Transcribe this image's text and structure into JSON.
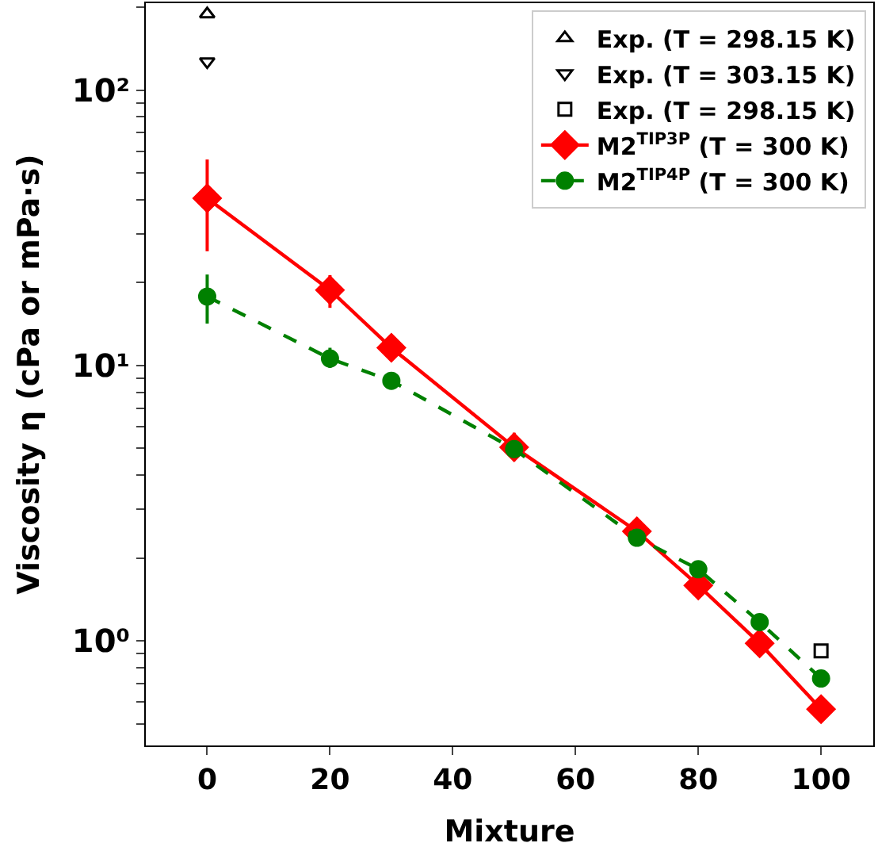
{
  "chart_data": {
    "type": "line",
    "xlabel": "Mixture",
    "ylabel": "Viscosity η (cPa or mPa·s)",
    "log": "y",
    "legend": "top right",
    "xlim": [
      -10,
      108.5
    ],
    "xticks": [
      0,
      20,
      40,
      60,
      80,
      100
    ],
    "ylim": [
      0.417,
      207
    ],
    "yticks": [
      {
        "value": 1,
        "label": "10⁰"
      },
      {
        "value": 10,
        "label": "10¹"
      },
      {
        "value": 100,
        "label": "10²"
      },
      {
        "value": 0.5,
        "label": null
      },
      {
        "value": 0.6,
        "label": null
      },
      {
        "value": 0.7,
        "label": null
      },
      {
        "value": 0.8,
        "label": null
      },
      {
        "value": 0.9,
        "label": null
      },
      {
        "value": 2,
        "label": null
      },
      {
        "value": 3,
        "label": null
      },
      {
        "value": 4,
        "label": null
      },
      {
        "value": 5,
        "label": null
      },
      {
        "value": 6,
        "label": null
      },
      {
        "value": 7,
        "label": null
      },
      {
        "value": 8,
        "label": null
      },
      {
        "value": 9,
        "label": null
      },
      {
        "value": 20,
        "label": null
      },
      {
        "value": 30,
        "label": null
      },
      {
        "value": 40,
        "label": null
      },
      {
        "value": 50,
        "label": null
      },
      {
        "value": 60,
        "label": null
      },
      {
        "value": 70,
        "label": null
      },
      {
        "value": 80,
        "label": null
      },
      {
        "value": 90,
        "label": null
      },
      {
        "value": 200,
        "label": null
      }
    ],
    "series": [
      {
        "name": "Exp. (T = 298.15 K)",
        "type": "scatter",
        "marker": "triangle",
        "color": "#000000",
        "x": [
          0
        ],
        "values": [
          189
        ]
      },
      {
        "name": "Exp. (T = 303.15 K)",
        "type": "scatter",
        "marker": "triangle-down",
        "color": "#000000",
        "x": [
          0
        ],
        "values": [
          127
        ]
      },
      {
        "name": "Exp. (T = 298.15 K)",
        "type": "scatter",
        "marker": "square",
        "color": "#000000",
        "x": [
          100
        ],
        "values": [
          0.92
        ]
      },
      {
        "name": "M2$^{TIP3P}$ (T = 300 K)",
        "marker": "diamond",
        "line_style": "solid",
        "color": "#ff0000",
        "x": [
          0,
          20,
          30,
          50,
          70,
          80,
          90,
          100
        ],
        "values": [
          40.5,
          18.8,
          11.6,
          5.05,
          2.5,
          1.59,
          0.98,
          0.565
        ],
        "errors": [
          [
            26,
            56
          ],
          [
            16.2,
            21.3
          ],
          [
            10.8,
            12.5
          ],
          [
            4.5,
            5.7
          ],
          [
            2.3,
            2.8
          ],
          [
            1.5,
            1.7
          ],
          null,
          null
        ]
      },
      {
        "name": "M2$^{TIP4P}$ (T = 300 K)",
        "marker": "circle",
        "line_style": "dashed",
        "color": "#008000",
        "x": [
          0,
          20,
          30,
          50,
          70,
          80,
          90,
          100
        ],
        "values": [
          17.8,
          10.6,
          8.8,
          4.97,
          2.37,
          1.82,
          1.17,
          0.73
        ],
        "errors": [
          [
            14.2,
            21.4
          ],
          [
            9.8,
            11.6
          ],
          null,
          null,
          null,
          null,
          null,
          null
        ]
      }
    ]
  }
}
